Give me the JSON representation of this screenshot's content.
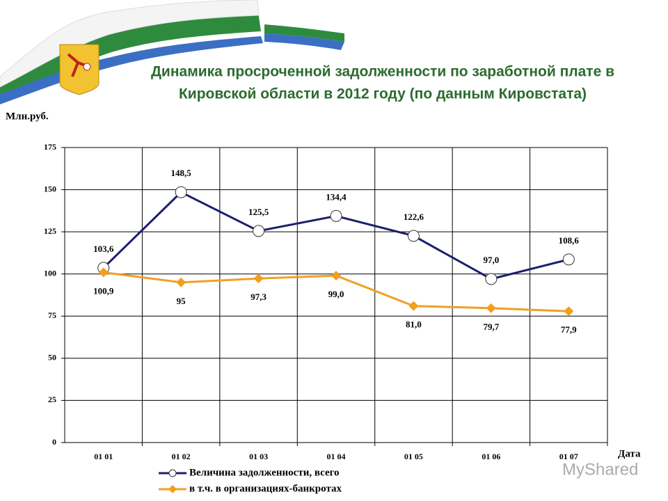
{
  "chart_data": {
    "type": "line",
    "title": [
      "Динамика просроченной задолженности по заработной плате в",
      "Кировской области в 2012 году (по данным Кировстата)"
    ],
    "y_label": "Млн.руб.",
    "x_label": "Дата",
    "watermark": "MyShared",
    "categories": [
      "01 01",
      "01 02",
      "01 03",
      "01 04",
      "01 05",
      "01 06",
      "01 07"
    ],
    "series": [
      {
        "name": "Величина задолженности, всего",
        "color": "#1c1f6b",
        "marker": "circle",
        "values": [
          103.6,
          148.5,
          125.5,
          134.4,
          122.6,
          97.0,
          108.6
        ],
        "value_labels": [
          "103,6",
          "148,5",
          "125,5",
          "134,4",
          "122,6",
          "97,0",
          "108,6"
        ]
      },
      {
        "name": "в т.ч. в организациях-банкротах",
        "color": "#f0a020",
        "marker": "diamond",
        "values": [
          100.9,
          95,
          97.3,
          99.0,
          81.0,
          79.7,
          77.9
        ],
        "value_labels": [
          "100,9",
          "95",
          "97,3",
          "99,0",
          "81,0",
          "79,7",
          "77,9"
        ]
      }
    ],
    "ylim": [
      0,
      175
    ],
    "yticks": [
      0,
      25,
      50,
      75,
      100,
      125,
      150,
      175
    ],
    "grid": true
  }
}
